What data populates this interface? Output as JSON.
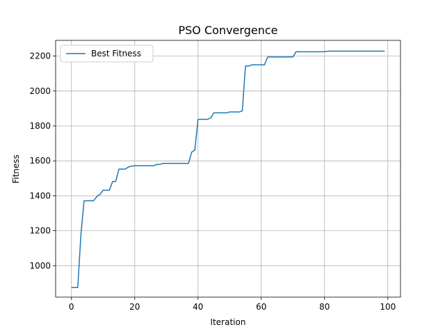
{
  "chart_data": {
    "type": "line",
    "title": "PSO Convergence",
    "xlabel": "Iteration",
    "ylabel": "Fitness",
    "xlim": [
      -5,
      104
    ],
    "ylim": [
      820,
      2290
    ],
    "xticks": [
      0,
      20,
      40,
      60,
      80,
      100
    ],
    "yticks": [
      1000,
      1200,
      1400,
      1600,
      1800,
      2000,
      2200
    ],
    "grid": true,
    "legend": {
      "placement": "top-left"
    },
    "series": [
      {
        "name": "Best Fitness",
        "color": "#1f77b4",
        "x": [
          0,
          1,
          2,
          3,
          4,
          5,
          6,
          7,
          8,
          9,
          10,
          11,
          12,
          13,
          14,
          15,
          16,
          17,
          18,
          19,
          20,
          21,
          22,
          23,
          24,
          25,
          26,
          27,
          28,
          29,
          30,
          31,
          32,
          33,
          34,
          35,
          36,
          37,
          38,
          39,
          40,
          41,
          42,
          43,
          44,
          45,
          46,
          47,
          48,
          49,
          50,
          51,
          52,
          53,
          54,
          55,
          56,
          57,
          58,
          59,
          60,
          61,
          62,
          63,
          64,
          65,
          66,
          67,
          68,
          69,
          70,
          71,
          72,
          73,
          74,
          75,
          76,
          77,
          78,
          79,
          80,
          81,
          82,
          83,
          84,
          85,
          86,
          87,
          88,
          89,
          90,
          91,
          92,
          93,
          94,
          95,
          96,
          97,
          98,
          99
        ],
        "y": [
          875,
          875,
          875,
          1180,
          1372,
          1372,
          1372,
          1372,
          1395,
          1408,
          1432,
          1432,
          1432,
          1482,
          1482,
          1553,
          1553,
          1553,
          1565,
          1570,
          1572,
          1572,
          1572,
          1572,
          1572,
          1572,
          1572,
          1580,
          1580,
          1586,
          1586,
          1586,
          1586,
          1586,
          1586,
          1586,
          1586,
          1586,
          1650,
          1662,
          1838,
          1838,
          1838,
          1838,
          1845,
          1875,
          1875,
          1875,
          1875,
          1875,
          1880,
          1880,
          1880,
          1880,
          1886,
          2143,
          2143,
          2150,
          2150,
          2150,
          2150,
          2150,
          2195,
          2195,
          2195,
          2195,
          2195,
          2195,
          2195,
          2195,
          2195,
          2225,
          2225,
          2225,
          2225,
          2225,
          2225,
          2225,
          2225,
          2225,
          2225,
          2228,
          2228,
          2228,
          2228,
          2228,
          2228,
          2228,
          2228,
          2228,
          2228,
          2228,
          2228,
          2228,
          2228,
          2228,
          2228,
          2228,
          2228,
          2228
        ]
      }
    ]
  }
}
